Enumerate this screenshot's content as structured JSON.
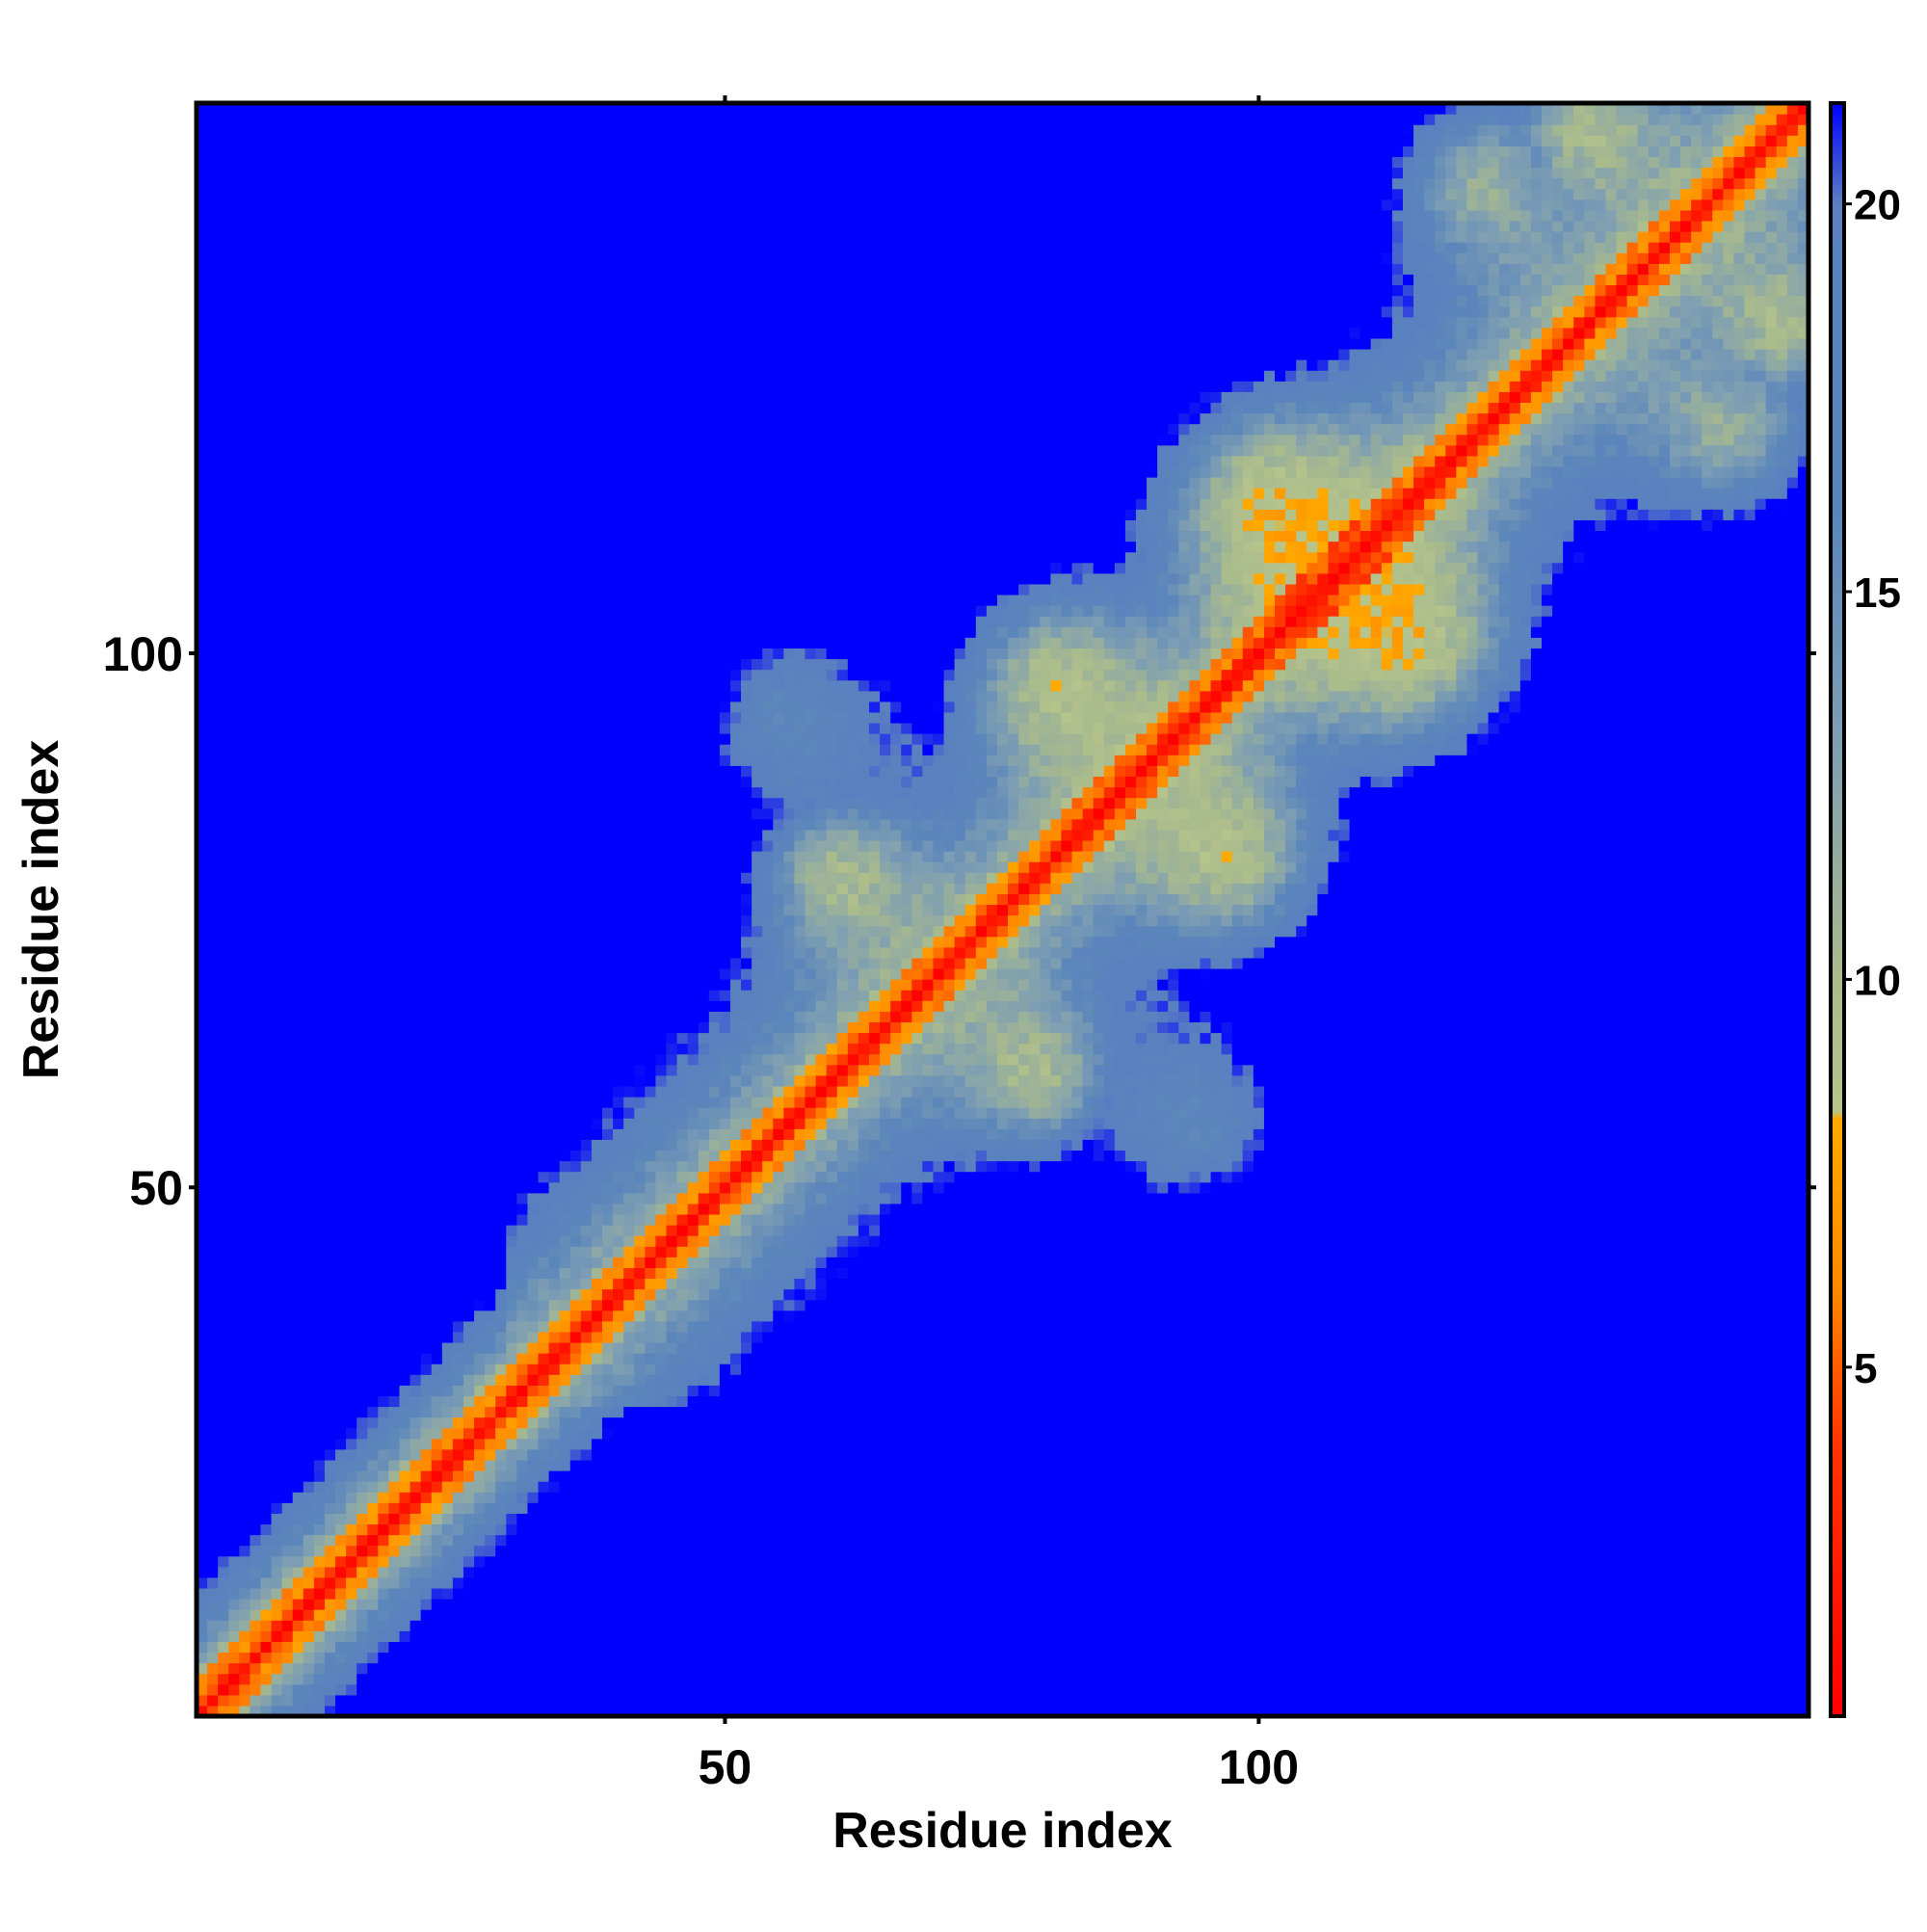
{
  "chart_data": {
    "type": "heatmap",
    "title": "",
    "xlabel": "Residue index",
    "ylabel": "Residue index",
    "n_residues": 151,
    "xlim": [
      1,
      151
    ],
    "ylim": [
      1,
      151
    ],
    "x_ticks": [
      50,
      100
    ],
    "y_ticks": [
      50,
      100
    ],
    "colorbar": {
      "range": [
        0.5,
        21.3
      ],
      "ticks": [
        5,
        10,
        15,
        20
      ],
      "gradient": [
        {
          "value": 0.5,
          "color": "#ff0000"
        },
        {
          "value": 4.0,
          "color": "#ff3300"
        },
        {
          "value": 6.0,
          "color": "#ff8800"
        },
        {
          "value": 8.2,
          "color": "#ffaa00"
        },
        {
          "value": 8.3,
          "color": "#b6c48c"
        },
        {
          "value": 10.0,
          "color": "#aabb8c"
        },
        {
          "value": 13.0,
          "color": "#7f9fb2"
        },
        {
          "value": 16.0,
          "color": "#5b86bb"
        },
        {
          "value": 20.0,
          "color": "#5a80c0"
        },
        {
          "value": 21.3,
          "color": "#0000ff"
        }
      ]
    },
    "legend_position": "right",
    "grid": false,
    "description_of_values": "Symmetric residue-residue distance map; near-diagonal values small (red/orange), mid-range contacts grey-green, far pairs saturate at blue."
  }
}
